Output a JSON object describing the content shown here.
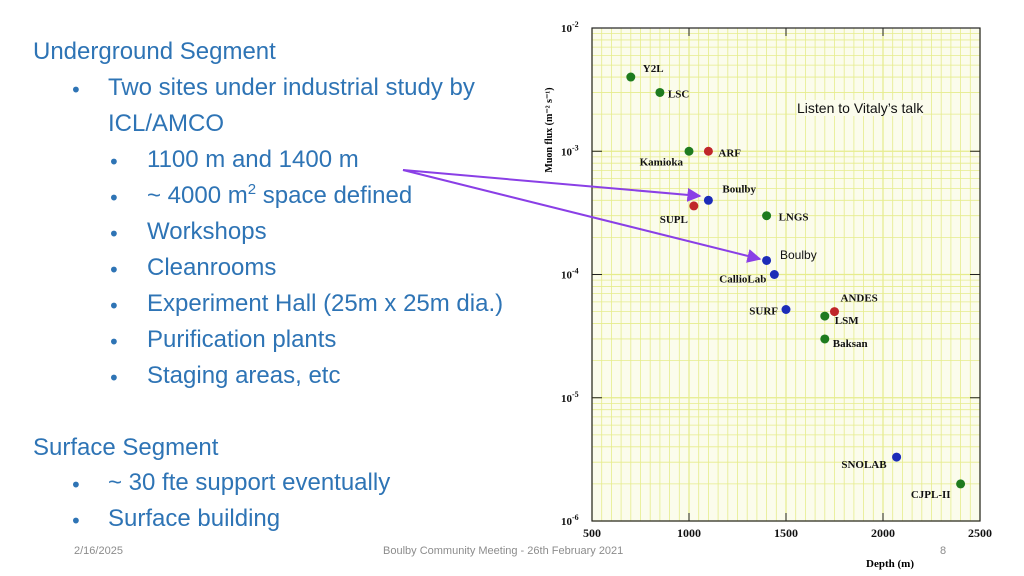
{
  "left": {
    "underground_heading": "Underground Segment",
    "underground_intro_line1": "Two sites under industrial study by",
    "underground_intro_line2": "ICL/AMCO",
    "underground_items": [
      "1100 m and 1400 m",
      "~ 4000 m",
      "2",
      " space defined",
      "Workshops",
      "Cleanrooms",
      "Experiment Hall (25m x 25m dia.)",
      "Purification plants",
      "Staging areas, etc"
    ],
    "surface_heading": "Surface Segment",
    "surface_items": [
      "~ 30 fte support eventually",
      "Surface building"
    ]
  },
  "callout": {
    "vitaly_note": "Listen to Vitaly’s talk",
    "boulby_label": "Boulby"
  },
  "footer": {
    "date": "2/16/2025",
    "center": "Boulby Community Meeting - 26th February 2021",
    "page": "8"
  },
  "chart_data": {
    "type": "scatter",
    "xlabel": "Depth (m)",
    "ylabel": "Muon flux (m⁻² s⁻¹)",
    "xlim": [
      500,
      2500
    ],
    "ylim": [
      1e-06,
      0.01
    ],
    "yscale": "log",
    "xticks": [
      "500",
      "1000",
      "1500",
      "2000",
      "2500"
    ],
    "yticks": [
      {
        "base": "10",
        "exp": "-2"
      },
      {
        "base": "10",
        "exp": "-3"
      },
      {
        "base": "10",
        "exp": "-4"
      },
      {
        "base": "10",
        "exp": "-5"
      },
      {
        "base": "10",
        "exp": "-6"
      }
    ],
    "grid": true,
    "colors": {
      "green": "#1e7b1e",
      "red": "#c0262a",
      "blue": "#1c2cb8",
      "grid": "#e6ec8c",
      "arrow": "#8a3fe6"
    },
    "points": [
      {
        "label": "Y2L",
        "x": 700,
        "y": 0.004,
        "color": "green"
      },
      {
        "label": "LSC",
        "x": 850,
        "y": 0.003,
        "color": "green"
      },
      {
        "label": "Kamioka",
        "x": 1000,
        "y": 0.001,
        "color": "green"
      },
      {
        "label": "ARF",
        "x": 1100,
        "y": 0.001,
        "color": "red"
      },
      {
        "label": "Boulby",
        "x": 1100,
        "y": 0.0004,
        "color": "blue"
      },
      {
        "label": "SUPL",
        "x": 1025,
        "y": 0.00036,
        "color": "red"
      },
      {
        "label": "LNGS",
        "x": 1400,
        "y": 0.0003,
        "color": "green"
      },
      {
        "label": "",
        "x": 1400,
        "y": 0.00013,
        "color": "blue"
      },
      {
        "label": "CallioLab",
        "x": 1440,
        "y": 0.0001,
        "color": "blue"
      },
      {
        "label": "SURF",
        "x": 1500,
        "y": 5.2e-05,
        "color": "blue"
      },
      {
        "label": "ANDES",
        "x": 1750,
        "y": 5e-05,
        "color": "red"
      },
      {
        "label": "LSM",
        "x": 1700,
        "y": 4.6e-05,
        "color": "green"
      },
      {
        "label": "Baksan",
        "x": 1700,
        "y": 3e-05,
        "color": "green"
      },
      {
        "label": "SNOLAB",
        "x": 2070,
        "y": 3.3e-06,
        "color": "blue"
      },
      {
        "label": "CJPL-II",
        "x": 2400,
        "y": 2e-06,
        "color": "green"
      }
    ]
  }
}
